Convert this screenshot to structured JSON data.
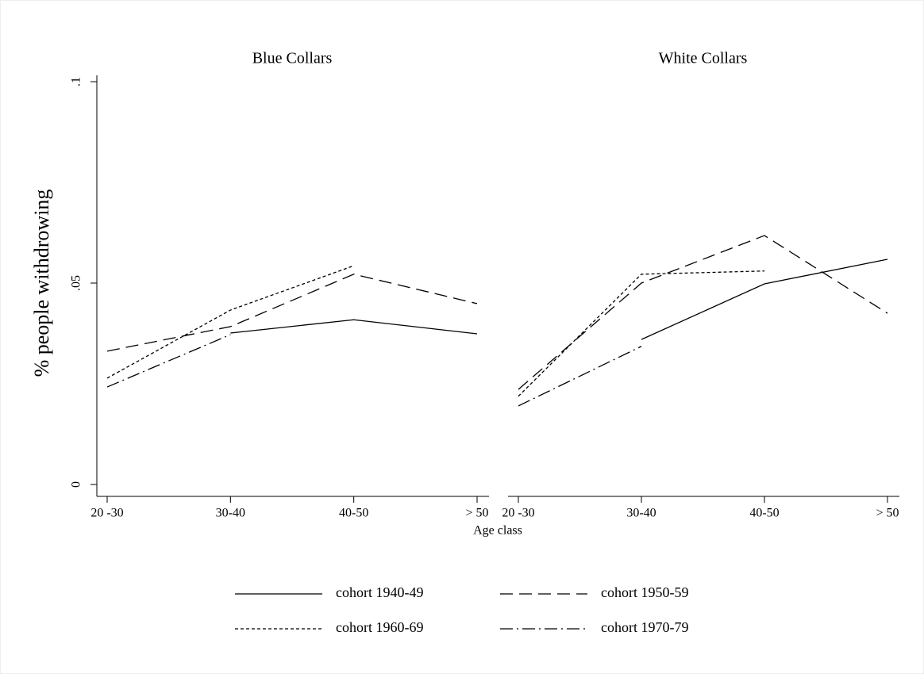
{
  "figure": {
    "xlabel": "Age class"
  },
  "chart_data": [
    {
      "type": "line",
      "title": "Blue Collars",
      "ylabel": "% people withdrowing",
      "categories": [
        "20 -30",
        "30-40",
        "40-50",
        "> 50"
      ],
      "ylim": [
        0,
        0.1
      ],
      "yticks": [
        0,
        {
          "value": 0.05,
          "label": ".05"
        },
        {
          "value": 0.1,
          "label": ".1"
        }
      ],
      "series": [
        {
          "name": "cohort 1940-49",
          "color": "#000000",
          "dash": "solid",
          "values": [
            null,
            0.0376,
            0.0409,
            0.0374
          ]
        },
        {
          "name": "cohort 1950-59",
          "color": "#000000",
          "dash": "long-dash",
          "values": [
            0.0331,
            0.0392,
            0.0522,
            0.0449
          ]
        },
        {
          "name": "cohort 1960-69",
          "color": "#000000",
          "dash": "short-dash",
          "values": [
            0.0264,
            0.0433,
            0.0543,
            null
          ]
        },
        {
          "name": "cohort 1970-79",
          "color": "#000000",
          "dash": "dash-dot",
          "values": [
            0.0242,
            0.0372,
            null,
            null
          ]
        }
      ]
    },
    {
      "type": "line",
      "title": "White Collars",
      "categories": [
        "20 -30",
        "30-40",
        "40-50",
        "> 50"
      ],
      "ylim": [
        0,
        0.1
      ],
      "series": [
        {
          "name": "cohort 1940-49",
          "color": "#000000",
          "dash": "solid",
          "values": [
            null,
            0.036,
            0.0498,
            0.0559
          ]
        },
        {
          "name": "cohort 1950-59",
          "color": "#000000",
          "dash": "long-dash",
          "values": [
            0.0236,
            0.05,
            0.0618,
            0.0425
          ]
        },
        {
          "name": "cohort 1960-69",
          "color": "#000000",
          "dash": "short-dash",
          "values": [
            0.0219,
            0.0522,
            0.053,
            null
          ]
        },
        {
          "name": "cohort 1970-79",
          "color": "#000000",
          "dash": "dash-dot",
          "values": [
            0.0195,
            0.0343,
            null,
            null
          ]
        }
      ]
    }
  ]
}
